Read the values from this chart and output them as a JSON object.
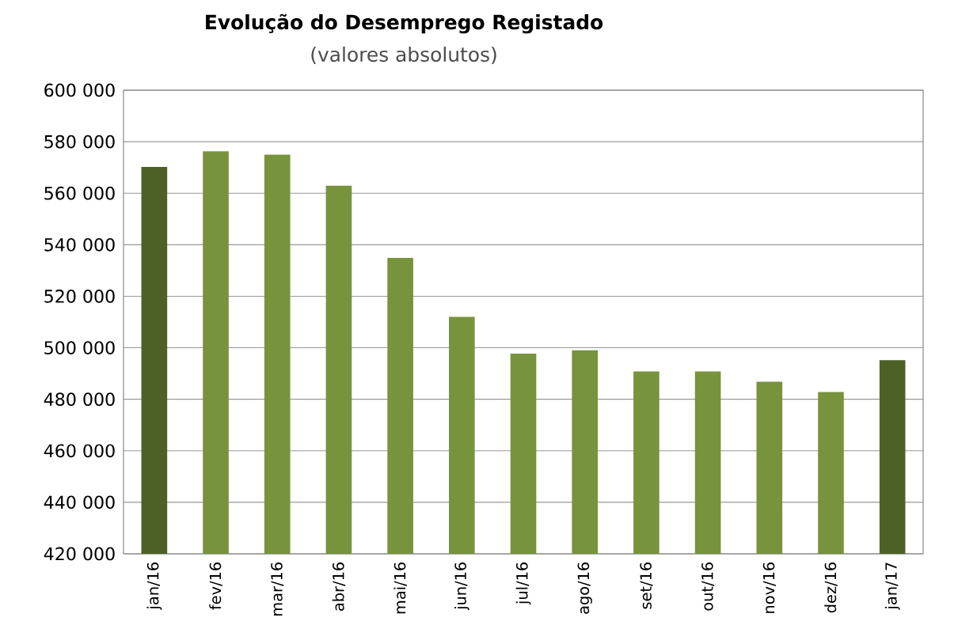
{
  "chart_data": {
    "type": "bar",
    "title": "Evolução do Desemprego Registado",
    "subtitle": "(valores absolutos)",
    "categories": [
      "jan/16",
      "fev/16",
      "mar/16",
      "abr/16",
      "mai/16",
      "jun/16",
      "jul/16",
      "ago/16",
      "set/16",
      "out/16",
      "nov/16",
      "dez/16",
      "jan/17"
    ],
    "values": [
      570200,
      576300,
      575000,
      562900,
      534900,
      512000,
      497700,
      499000,
      490800,
      490800,
      486800,
      482800,
      495200
    ],
    "colors": [
      "#4d6127",
      "#77933c",
      "#77933c",
      "#77933c",
      "#77933c",
      "#77933c",
      "#77933c",
      "#77933c",
      "#77933c",
      "#77933c",
      "#77933c",
      "#77933c",
      "#4d6127"
    ],
    "ylim": [
      420000,
      600000
    ],
    "yticks": [
      {
        "value": 420000,
        "label": "420 000"
      },
      {
        "value": 440000,
        "label": "440 000"
      },
      {
        "value": 460000,
        "label": "460 000"
      },
      {
        "value": 480000,
        "label": "480 000"
      },
      {
        "value": 500000,
        "label": "500 000"
      },
      {
        "value": 520000,
        "label": "520 000"
      },
      {
        "value": 540000,
        "label": "540 000"
      },
      {
        "value": 560000,
        "label": "560 000"
      },
      {
        "value": 580000,
        "label": "580 000"
      },
      {
        "value": 600000,
        "label": "600 000"
      }
    ],
    "grid": "y"
  }
}
